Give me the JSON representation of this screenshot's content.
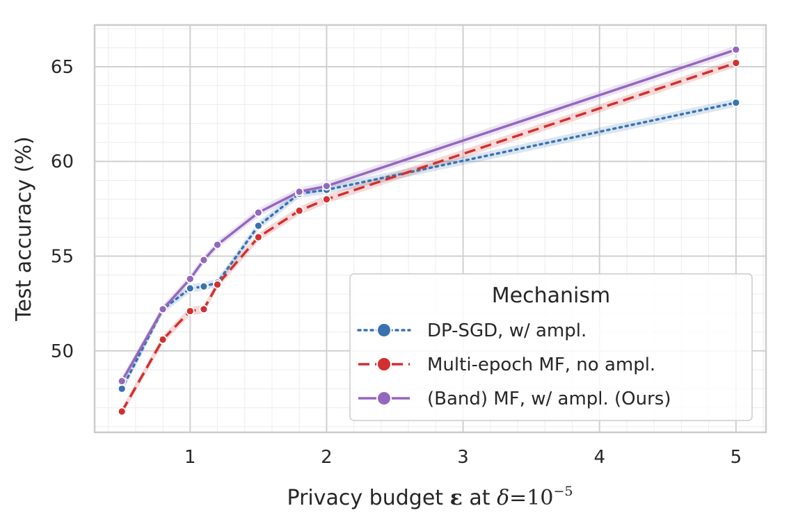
{
  "chart_data": {
    "type": "line",
    "xlabel": "Privacy budget ε at δ=10⁻⁵",
    "xlabel_parts": {
      "prefix": "Privacy budget ",
      "epsilon": "ε",
      "middle": " at ",
      "delta": "δ",
      "equals": "=",
      "base": "10",
      "exponent": "−5"
    },
    "ylabel": "Test accuracy (%)",
    "xlim": [
      0.3,
      5.22
    ],
    "ylim": [
      45.7,
      67.2
    ],
    "xticks": [
      1,
      2,
      3,
      4,
      5
    ],
    "yticks": [
      50,
      55,
      60,
      65
    ],
    "grid": true,
    "legend": {
      "title": "Mechanism",
      "position": "lower-right"
    },
    "series": [
      {
        "name": "DP-SGD, w/ ampl.",
        "color": "#3a72b0",
        "linestyle": "dotted",
        "x": [
          0.5,
          0.8,
          1.0,
          1.1,
          1.2,
          1.5,
          1.8,
          2.0,
          5.0
        ],
        "y": [
          48.0,
          52.2,
          53.3,
          53.4,
          53.6,
          56.6,
          58.3,
          58.5,
          63.1
        ]
      },
      {
        "name": "Multi-epoch MF, no ampl.",
        "color": "#d13030",
        "linestyle": "dashed",
        "x": [
          0.5,
          0.8,
          1.0,
          1.1,
          1.2,
          1.5,
          1.8,
          2.0,
          5.0
        ],
        "y": [
          46.8,
          50.6,
          52.1,
          52.2,
          53.5,
          56.0,
          57.4,
          58.0,
          65.2
        ]
      },
      {
        "name": "(Band) MF, w/ ampl. (Ours)",
        "color": "#9467bd",
        "linestyle": "solid",
        "x": [
          0.5,
          0.8,
          1.0,
          1.1,
          1.2,
          1.5,
          1.8,
          2.0,
          5.0
        ],
        "y": [
          48.4,
          52.2,
          53.8,
          54.8,
          55.6,
          57.3,
          58.4,
          58.7,
          65.9
        ]
      }
    ]
  }
}
